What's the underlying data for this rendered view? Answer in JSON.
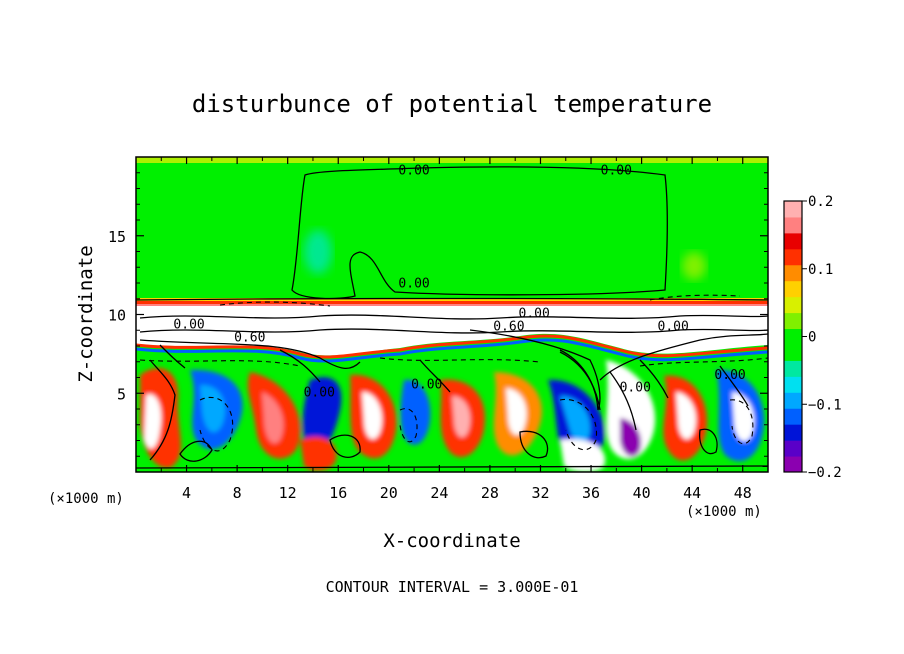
{
  "chart_data": {
    "type": "heatmap",
    "title": "disturbunce of potential temperature",
    "xlabel": "X-coordinate",
    "ylabel": "Z-coordinate",
    "x_unit_label_left": "(×1000 m)",
    "x_unit_label_right": "(×1000 m)",
    "footer": "CONTOUR INTERVAL = 3.000E-01",
    "xlim": [
      0,
      50
    ],
    "ylim": [
      0,
      20
    ],
    "x_ticks": [
      4,
      8,
      12,
      16,
      20,
      24,
      28,
      32,
      36,
      40,
      44,
      48
    ],
    "x_tick_labels": [
      "4",
      "8",
      "12",
      "16",
      "20",
      "24",
      "28",
      "32",
      "36",
      "40",
      "44",
      "48"
    ],
    "y_ticks": [
      5,
      10,
      15
    ],
    "y_tick_labels": [
      "5",
      "10",
      "15"
    ],
    "colorbar": {
      "range": [
        -0.2,
        0.2
      ],
      "tick_values": [
        0.2,
        0.1,
        0,
        -0.1,
        -0.2
      ],
      "tick_labels": [
        "0.2",
        "0.1",
        "0",
        "−0.1",
        "−0.2"
      ],
      "colors": [
        "#8b00b0",
        "#5a00c8",
        "#0014d8",
        "#0060ff",
        "#00a8ff",
        "#00e0f0",
        "#00e8a0",
        "#00f000",
        "#00f000",
        "#80f000",
        "#d8f000",
        "#ffd000",
        "#ff8c00",
        "#ff3000",
        "#e80000",
        "#ff8080",
        "#ffb0b0"
      ]
    },
    "contour_labels": [
      {
        "text": "0.00",
        "x": 22,
        "y": 18.9
      },
      {
        "text": "0.00",
        "x": 38,
        "y": 18.9
      },
      {
        "text": "0.00",
        "x": 22,
        "y": 11.7
      },
      {
        "text": "0.00",
        "x": 31.5,
        "y": 9.8
      },
      {
        "text": "0.60",
        "x": 29.5,
        "y": 9.0
      },
      {
        "text": "0.00",
        "x": 4.2,
        "y": 9.1
      },
      {
        "text": "0.00",
        "x": 42.5,
        "y": 9.0
      },
      {
        "text": "0.60",
        "x": 9,
        "y": 8.3
      },
      {
        "text": "0.00",
        "x": 14.5,
        "y": 4.8
      },
      {
        "text": "0.00",
        "x": 23,
        "y": 5.3
      },
      {
        "text": "0.00",
        "x": 39.5,
        "y": 5.1
      },
      {
        "text": "0.00",
        "x": 47,
        "y": 5.9
      }
    ]
  }
}
